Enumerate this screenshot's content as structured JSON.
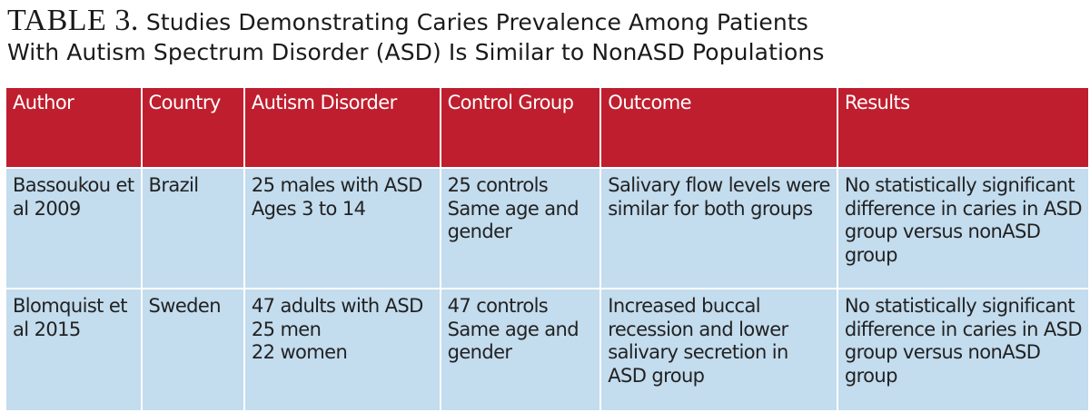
{
  "title": {
    "label": "TABLE 3.",
    "line1": "Studies Demonstrating Caries Prevalence Among Patients",
    "line2": "With Autism Spectrum Disorder (ASD) Is Similar to NonASD Populations"
  },
  "colors": {
    "header_bg": "#bf1e2e",
    "header_text": "#ffffff",
    "row_bg": "#c3dcee"
  },
  "table": {
    "headers": [
      "Author",
      "Country",
      "Autism Disorder",
      "Control Group",
      "Outcome",
      "Results"
    ],
    "rows": [
      {
        "author": [
          "Bassoukou et",
          "al 2009"
        ],
        "country": [
          "Brazil"
        ],
        "autism_disorder": [
          "25 males with ASD",
          "Ages 3 to 14"
        ],
        "control_group": [
          "25 controls",
          "Same age and",
          "gender"
        ],
        "outcome": [
          "Salivary flow levels were",
          "similar for both groups"
        ],
        "results": [
          "No statistically significant",
          "difference in caries in ASD",
          "group versus nonASD",
          "group"
        ]
      },
      {
        "author": [
          "Blomquist et",
          "al 2015"
        ],
        "country": [
          "Sweden"
        ],
        "autism_disorder": [
          "47 adults with ASD",
          "25 men",
          "22 women"
        ],
        "control_group": [
          "47 controls",
          "Same age and",
          "gender"
        ],
        "outcome": [
          "Increased buccal",
          "recession and lower",
          "salivary secretion in",
          "ASD group"
        ],
        "results": [
          "No statistically significant",
          "difference in caries in ASD",
          "group versus nonASD",
          "group"
        ]
      }
    ]
  }
}
